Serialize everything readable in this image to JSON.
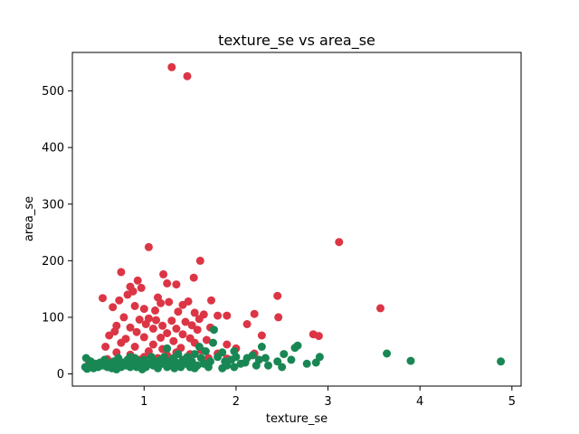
{
  "chart_data": {
    "type": "scatter",
    "title": "texture_se vs area_se",
    "xlabel": "texture_se",
    "ylabel": "area_se",
    "xlim": [
      0.22,
      5.1
    ],
    "ylim": [
      -21.5,
      568
    ],
    "xticks": [
      1,
      2,
      3,
      4,
      5
    ],
    "yticks": [
      0,
      100,
      200,
      300,
      400,
      500
    ],
    "grid": false,
    "legend": "none",
    "series": [
      {
        "color": "#dc3545",
        "points": [
          [
            1.3,
            542
          ],
          [
            1.47,
            526
          ],
          [
            3.12,
            233
          ],
          [
            1.05,
            224
          ],
          [
            1.61,
            200
          ],
          [
            0.75,
            180
          ],
          [
            1.21,
            176
          ],
          [
            1.54,
            170
          ],
          [
            0.93,
            165
          ],
          [
            1.25,
            160
          ],
          [
            1.35,
            158
          ],
          [
            0.85,
            154
          ],
          [
            0.97,
            152
          ],
          [
            0.88,
            146
          ],
          [
            0.82,
            140
          ],
          [
            1.15,
            135
          ],
          [
            2.45,
            138
          ],
          [
            0.55,
            134
          ],
          [
            0.73,
            130
          ],
          [
            1.48,
            128
          ],
          [
            1.73,
            130
          ],
          [
            1.27,
            127
          ],
          [
            1.18,
            125
          ],
          [
            1.42,
            122
          ],
          [
            0.9,
            120
          ],
          [
            0.66,
            118
          ],
          [
            1.0,
            115
          ],
          [
            1.12,
            112
          ],
          [
            1.37,
            110
          ],
          [
            1.55,
            108
          ],
          [
            1.65,
            105
          ],
          [
            2.2,
            106
          ],
          [
            3.57,
            116
          ],
          [
            1.8,
            103
          ],
          [
            1.9,
            103
          ],
          [
            0.78,
            100
          ],
          [
            1.05,
            98
          ],
          [
            1.6,
            97
          ],
          [
            2.46,
            100
          ],
          [
            0.95,
            96
          ],
          [
            1.13,
            95
          ],
          [
            1.3,
            94
          ],
          [
            1.45,
            92
          ],
          [
            2.12,
            88
          ],
          [
            1.02,
            88
          ],
          [
            0.7,
            85
          ],
          [
            1.2,
            85
          ],
          [
            1.52,
            86
          ],
          [
            0.85,
            82
          ],
          [
            1.1,
            80
          ],
          [
            1.35,
            80
          ],
          [
            1.72,
            82
          ],
          [
            1.58,
            78
          ],
          [
            0.68,
            75
          ],
          [
            0.92,
            74
          ],
          [
            1.25,
            72
          ],
          [
            1.42,
            70
          ],
          [
            0.62,
            68
          ],
          [
            2.28,
            68
          ],
          [
            2.84,
            70
          ],
          [
            2.9,
            67
          ],
          [
            1.0,
            65
          ],
          [
            1.18,
            64
          ],
          [
            1.5,
            63
          ],
          [
            0.8,
            62
          ],
          [
            1.68,
            60
          ],
          [
            1.32,
            58
          ],
          [
            0.75,
            55
          ],
          [
            1.55,
            55
          ],
          [
            1.9,
            52
          ],
          [
            1.1,
            52
          ],
          [
            0.58,
            48
          ],
          [
            0.9,
            48
          ],
          [
            1.4,
            46
          ],
          [
            1.2,
            44
          ],
          [
            1.62,
            42
          ],
          [
            2.0,
            45
          ],
          [
            1.05,
            40
          ],
          [
            0.7,
            38
          ],
          [
            1.35,
            38
          ],
          [
            1.8,
            36
          ],
          [
            2.2,
            36
          ],
          [
            1.5,
            35
          ],
          [
            0.85,
            34
          ],
          [
            1.25,
            33
          ],
          [
            1.0,
            30
          ],
          [
            1.15,
            28
          ],
          [
            1.7,
            28
          ],
          [
            0.6,
            26
          ],
          [
            1.45,
            26
          ],
          [
            0.95,
            25
          ],
          [
            1.9,
            27
          ],
          [
            1.2,
            22
          ],
          [
            0.4,
            23
          ]
        ]
      },
      {
        "color": "#198754",
        "points": [
          [
            4.88,
            22
          ],
          [
            3.9,
            23
          ],
          [
            3.64,
            36
          ],
          [
            2.91,
            30
          ],
          [
            2.87,
            20
          ],
          [
            2.77,
            18
          ],
          [
            2.67,
            50
          ],
          [
            2.64,
            46
          ],
          [
            2.6,
            25
          ],
          [
            2.52,
            35
          ],
          [
            2.5,
            12
          ],
          [
            2.45,
            22
          ],
          [
            2.35,
            15
          ],
          [
            2.32,
            28
          ],
          [
            2.28,
            48
          ],
          [
            2.25,
            25
          ],
          [
            2.22,
            15
          ],
          [
            2.18,
            33
          ],
          [
            2.12,
            28
          ],
          [
            2.05,
            18
          ],
          [
            2.0,
            30
          ],
          [
            1.98,
            12
          ],
          [
            1.95,
            25
          ],
          [
            1.9,
            15
          ],
          [
            1.88,
            22
          ],
          [
            1.85,
            38
          ],
          [
            1.8,
            30
          ],
          [
            1.75,
            55
          ],
          [
            1.72,
            22
          ],
          [
            1.7,
            12
          ],
          [
            1.67,
            40
          ],
          [
            1.65,
            18
          ],
          [
            1.62,
            28
          ],
          [
            1.58,
            15
          ],
          [
            1.55,
            35
          ],
          [
            1.52,
            22
          ],
          [
            1.5,
            12
          ],
          [
            1.47,
            30
          ],
          [
            1.45,
            18
          ],
          [
            1.42,
            25
          ],
          [
            1.4,
            12
          ],
          [
            1.37,
            35
          ],
          [
            1.35,
            20
          ],
          [
            1.32,
            28
          ],
          [
            1.3,
            15
          ],
          [
            1.28,
            22
          ],
          [
            1.25,
            12
          ],
          [
            1.22,
            30
          ],
          [
            1.2,
            18
          ],
          [
            1.18,
            25
          ],
          [
            1.15,
            12
          ],
          [
            1.12,
            22
          ],
          [
            1.1,
            15
          ],
          [
            1.08,
            30
          ],
          [
            1.05,
            18
          ],
          [
            1.02,
            12
          ],
          [
            1.0,
            25
          ],
          [
            0.97,
            15
          ],
          [
            0.95,
            22
          ],
          [
            0.92,
            12
          ],
          [
            0.9,
            28
          ],
          [
            0.88,
            18
          ],
          [
            0.85,
            12
          ],
          [
            0.82,
            25
          ],
          [
            0.8,
            15
          ],
          [
            0.77,
            20
          ],
          [
            0.75,
            12
          ],
          [
            0.72,
            28
          ],
          [
            0.7,
            15
          ],
          [
            0.67,
            22
          ],
          [
            0.65,
            10
          ],
          [
            0.62,
            18
          ],
          [
            0.6,
            12
          ],
          [
            0.57,
            25
          ],
          [
            0.55,
            15
          ],
          [
            0.52,
            20
          ],
          [
            0.5,
            12
          ],
          [
            0.47,
            18
          ],
          [
            0.45,
            10
          ],
          [
            0.42,
            22
          ],
          [
            0.4,
            14
          ],
          [
            0.38,
            9
          ],
          [
            0.37,
            28
          ],
          [
            0.36,
            12
          ],
          [
            1.76,
            78
          ],
          [
            1.25,
            45
          ],
          [
            1.6,
            48
          ],
          [
            1.98,
            40
          ],
          [
            2.1,
            20
          ],
          [
            1.33,
            10
          ],
          [
            0.98,
            8
          ],
          [
            1.15,
            10
          ],
          [
            1.55,
            10
          ],
          [
            1.85,
            10
          ],
          [
            0.7,
            8
          ],
          [
            0.85,
            30
          ]
        ]
      }
    ]
  }
}
